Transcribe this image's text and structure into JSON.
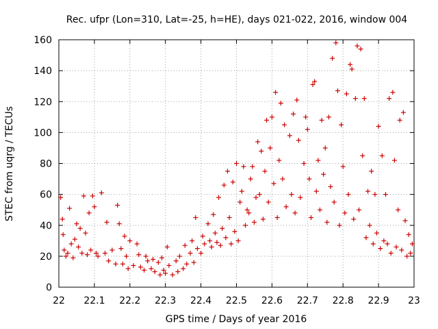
{
  "chart_data": {
    "type": "scatter",
    "title": "Rec. ufpr (Lon=310, Lat=-25, h=HE), days 021-022, 2016, window 004",
    "xlabel": "GPS time / Days of year 2016",
    "ylabel": "STEC from uqrg / TECUs",
    "xlim": [
      22.0,
      23.0
    ],
    "ylim": [
      0,
      160
    ],
    "xticks": [
      "22",
      "22.1",
      "22.2",
      "22.3",
      "22.4",
      "22.5",
      "22.6",
      "22.7",
      "22.8",
      "22.9",
      "23"
    ],
    "yticks": [
      "0",
      "20",
      "40",
      "60",
      "80",
      "100",
      "120",
      "140",
      "160"
    ],
    "marker": "+",
    "color": "#cc0000",
    "series": [
      {
        "name": "STEC",
        "points": [
          [
            22.005,
            58
          ],
          [
            22.01,
            44
          ],
          [
            22.012,
            34
          ],
          [
            22.015,
            24
          ],
          [
            22.02,
            20
          ],
          [
            22.025,
            22
          ],
          [
            22.03,
            51
          ],
          [
            22.035,
            28
          ],
          [
            22.04,
            19
          ],
          [
            22.045,
            31
          ],
          [
            22.05,
            41
          ],
          [
            22.055,
            26
          ],
          [
            22.06,
            38
          ],
          [
            22.065,
            22
          ],
          [
            22.07,
            59
          ],
          [
            22.075,
            35
          ],
          [
            22.08,
            21
          ],
          [
            22.085,
            48
          ],
          [
            22.09,
            24
          ],
          [
            22.095,
            59
          ],
          [
            22.1,
            52
          ],
          [
            22.105,
            22
          ],
          [
            22.11,
            20
          ],
          [
            22.12,
            61
          ],
          [
            22.13,
            22
          ],
          [
            22.135,
            42
          ],
          [
            22.14,
            17
          ],
          [
            22.15,
            24
          ],
          [
            22.16,
            15
          ],
          [
            22.165,
            53
          ],
          [
            22.17,
            41
          ],
          [
            22.175,
            25
          ],
          [
            22.18,
            15
          ],
          [
            22.185,
            33
          ],
          [
            22.19,
            20
          ],
          [
            22.195,
            12
          ],
          [
            22.2,
            30
          ],
          [
            22.21,
            14
          ],
          [
            22.22,
            28
          ],
          [
            22.225,
            21
          ],
          [
            22.23,
            13
          ],
          [
            22.24,
            11
          ],
          [
            22.245,
            20
          ],
          [
            22.25,
            17
          ],
          [
            22.26,
            12
          ],
          [
            22.265,
            18
          ],
          [
            22.27,
            10
          ],
          [
            22.28,
            16
          ],
          [
            22.285,
            8
          ],
          [
            22.29,
            19
          ],
          [
            22.295,
            11
          ],
          [
            22.3,
            9
          ],
          [
            22.305,
            26
          ],
          [
            22.31,
            14
          ],
          [
            22.32,
            8
          ],
          [
            22.33,
            17
          ],
          [
            22.335,
            10
          ],
          [
            22.34,
            20
          ],
          [
            22.35,
            12
          ],
          [
            22.355,
            27
          ],
          [
            22.36,
            15
          ],
          [
            22.37,
            22
          ],
          [
            22.375,
            30
          ],
          [
            22.38,
            16
          ],
          [
            22.385,
            45
          ],
          [
            22.39,
            25
          ],
          [
            22.4,
            22
          ],
          [
            22.405,
            33
          ],
          [
            22.41,
            28
          ],
          [
            22.42,
            41
          ],
          [
            22.425,
            30
          ],
          [
            22.43,
            26
          ],
          [
            22.435,
            47
          ],
          [
            22.44,
            35
          ],
          [
            22.445,
            29
          ],
          [
            22.45,
            58
          ],
          [
            22.455,
            27
          ],
          [
            22.46,
            38
          ],
          [
            22.465,
            66
          ],
          [
            22.47,
            32
          ],
          [
            22.475,
            75
          ],
          [
            22.48,
            45
          ],
          [
            22.485,
            28
          ],
          [
            22.49,
            68
          ],
          [
            22.495,
            36
          ],
          [
            22.5,
            80
          ],
          [
            22.505,
            30
          ],
          [
            22.51,
            55
          ],
          [
            22.515,
            62
          ],
          [
            22.52,
            78
          ],
          [
            22.525,
            40
          ],
          [
            22.53,
            50
          ],
          [
            22.535,
            48
          ],
          [
            22.54,
            70
          ],
          [
            22.545,
            78
          ],
          [
            22.55,
            42
          ],
          [
            22.555,
            58
          ],
          [
            22.56,
            94
          ],
          [
            22.565,
            60
          ],
          [
            22.57,
            88
          ],
          [
            22.575,
            44
          ],
          [
            22.58,
            75
          ],
          [
            22.585,
            108
          ],
          [
            22.59,
            55
          ],
          [
            22.595,
            90
          ],
          [
            22.6,
            110
          ],
          [
            22.605,
            67
          ],
          [
            22.61,
            126
          ],
          [
            22.615,
            45
          ],
          [
            22.62,
            82
          ],
          [
            22.625,
            119
          ],
          [
            22.63,
            70
          ],
          [
            22.635,
            105
          ],
          [
            22.64,
            52
          ],
          [
            22.65,
            98
          ],
          [
            22.655,
            60
          ],
          [
            22.66,
            112
          ],
          [
            22.665,
            48
          ],
          [
            22.67,
            121
          ],
          [
            22.675,
            95
          ],
          [
            22.68,
            58
          ],
          [
            22.69,
            80
          ],
          [
            22.695,
            110
          ],
          [
            22.7,
            102
          ],
          [
            22.705,
            70
          ],
          [
            22.71,
            45
          ],
          [
            22.715,
            131
          ],
          [
            22.72,
            133
          ],
          [
            22.725,
            62
          ],
          [
            22.73,
            82
          ],
          [
            22.735,
            50
          ],
          [
            22.74,
            108
          ],
          [
            22.745,
            73
          ],
          [
            22.75,
            90
          ],
          [
            22.755,
            42
          ],
          [
            22.76,
            110
          ],
          [
            22.765,
            65
          ],
          [
            22.77,
            148
          ],
          [
            22.775,
            55
          ],
          [
            22.78,
            158
          ],
          [
            22.785,
            127
          ],
          [
            22.79,
            40
          ],
          [
            22.795,
            105
          ],
          [
            22.8,
            78
          ],
          [
            22.805,
            48
          ],
          [
            22.81,
            125
          ],
          [
            22.815,
            60
          ],
          [
            22.82,
            144
          ],
          [
            22.825,
            141
          ],
          [
            22.83,
            44
          ],
          [
            22.835,
            122
          ],
          [
            22.84,
            156
          ],
          [
            22.845,
            50
          ],
          [
            22.85,
            154
          ],
          [
            22.855,
            85
          ],
          [
            22.86,
            122
          ],
          [
            22.865,
            32
          ],
          [
            22.87,
            62
          ],
          [
            22.875,
            40
          ],
          [
            22.88,
            75
          ],
          [
            22.885,
            28
          ],
          [
            22.89,
            60
          ],
          [
            22.895,
            35
          ],
          [
            22.9,
            104
          ],
          [
            22.905,
            25
          ],
          [
            22.91,
            85
          ],
          [
            22.915,
            30
          ],
          [
            22.92,
            60
          ],
          [
            22.925,
            28
          ],
          [
            22.93,
            122
          ],
          [
            22.935,
            22
          ],
          [
            22.94,
            126
          ],
          [
            22.945,
            82
          ],
          [
            22.95,
            26
          ],
          [
            22.955,
            50
          ],
          [
            22.96,
            108
          ],
          [
            22.965,
            24
          ],
          [
            22.97,
            113
          ],
          [
            22.975,
            43
          ],
          [
            22.98,
            20
          ],
          [
            22.985,
            34
          ],
          [
            22.99,
            22
          ],
          [
            22.995,
            28
          ]
        ]
      }
    ]
  }
}
